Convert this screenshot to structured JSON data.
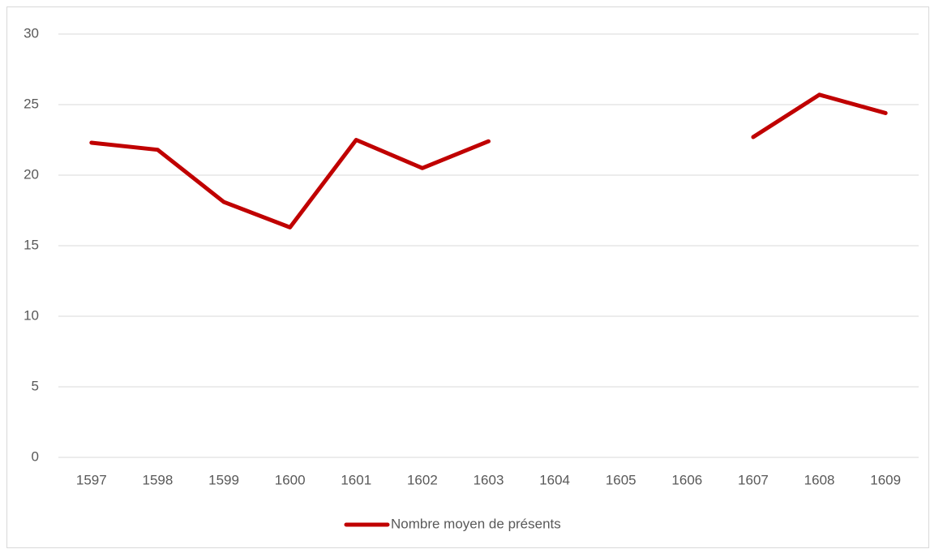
{
  "chart_data": {
    "type": "line",
    "categories": [
      "1597",
      "1598",
      "1599",
      "1600",
      "1601",
      "1602",
      "1603",
      "1604",
      "1605",
      "1606",
      "1607",
      "1608",
      "1609"
    ],
    "series": [
      {
        "name": "Nombre moyen de présents",
        "color": "#c00000",
        "values": [
          22.3,
          21.8,
          18.1,
          16.3,
          22.5,
          20.5,
          22.4,
          null,
          null,
          null,
          22.7,
          25.7,
          24.4
        ]
      }
    ],
    "ylim": [
      0,
      30
    ],
    "yticks": [
      0,
      5,
      10,
      15,
      20,
      25,
      30
    ],
    "grid": true,
    "legend": "bottom"
  }
}
